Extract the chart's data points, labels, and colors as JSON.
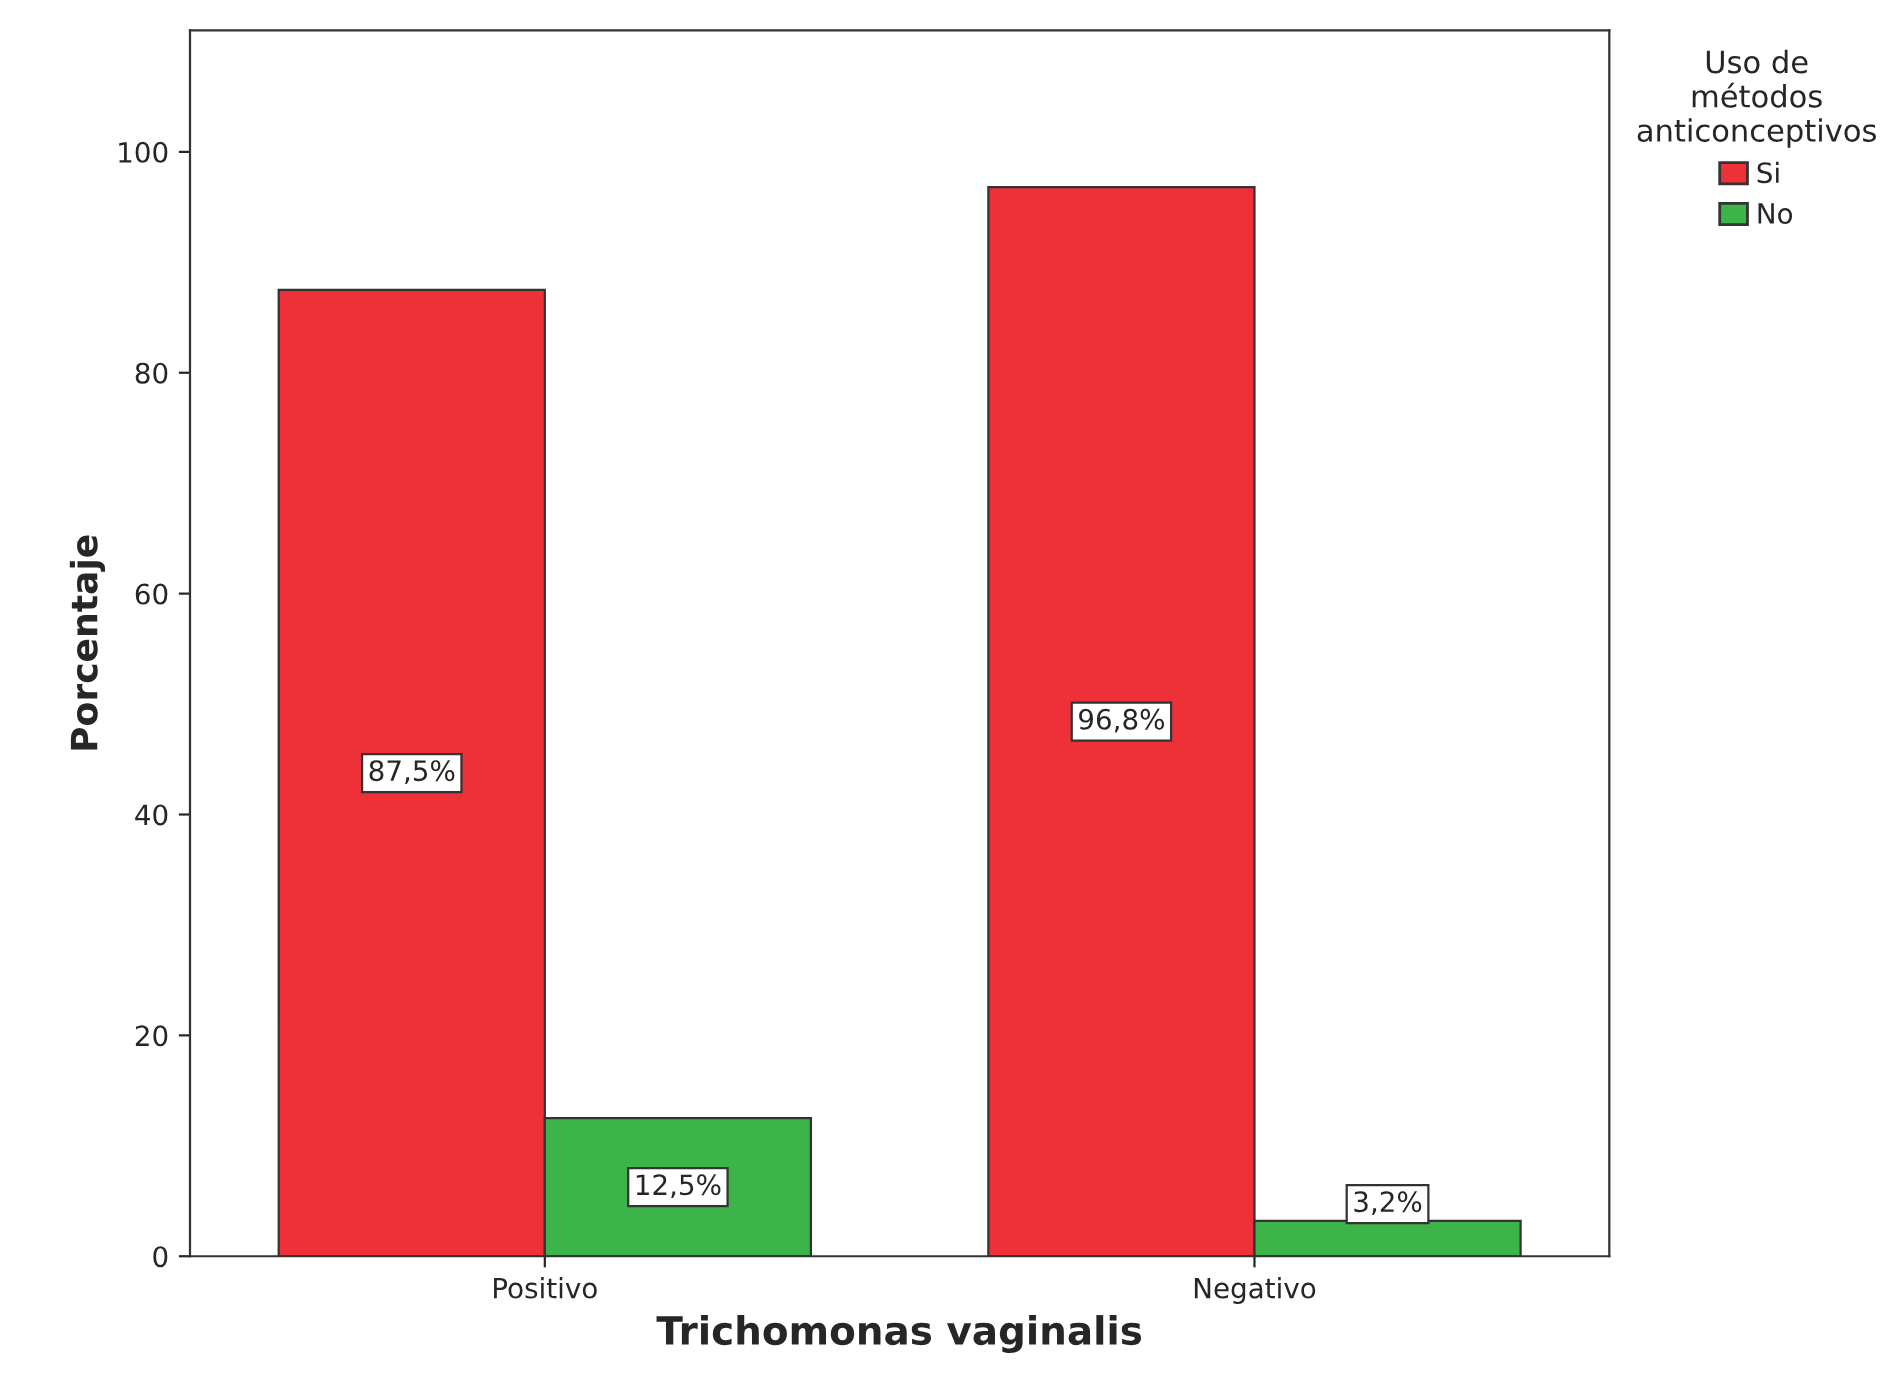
{
  "chart_data": {
    "type": "bar",
    "xlabel": "Trichomonas vaginalis",
    "ylabel": "Porcentaje",
    "legend_title": "Uso de\nmétodos\nanticonceptivos",
    "categories": [
      "Positivo",
      "Negativo"
    ],
    "series": [
      {
        "name": "Si",
        "color": "#ee3039",
        "values": [
          87.5,
          96.8
        ],
        "value_labels": [
          "87,5%",
          "96,8%"
        ]
      },
      {
        "name": "No",
        "color": "#3cb44a",
        "values": [
          12.5,
          3.2
        ],
        "value_labels": [
          "12,5%",
          "3,2%"
        ]
      }
    ],
    "ylim": [
      0,
      111
    ],
    "yticks": [
      0,
      20,
      40,
      60,
      80,
      100
    ],
    "grid": false,
    "legend": "top right"
  }
}
